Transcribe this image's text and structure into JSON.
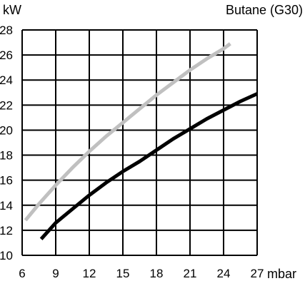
{
  "chart_data": {
    "type": "line",
    "title": "Butane (G30)",
    "xlabel": "mbar",
    "ylabel": "kW",
    "xlim": [
      6,
      27
    ],
    "ylim": [
      10,
      28
    ],
    "x_ticks": [
      6,
      9,
      12,
      15,
      18,
      21,
      24,
      27
    ],
    "y_ticks": [
      10,
      12,
      14,
      16,
      18,
      20,
      22,
      24,
      26,
      28
    ],
    "grid": true,
    "series": [
      {
        "color": "#c0c0c0",
        "points": [
          {
            "x": 6.3,
            "y": 12.8
          },
          {
            "x": 7.5,
            "y": 14.1
          },
          {
            "x": 9.0,
            "y": 15.6
          },
          {
            "x": 10.5,
            "y": 17.0
          },
          {
            "x": 12.0,
            "y": 18.3
          },
          {
            "x": 13.5,
            "y": 19.5
          },
          {
            "x": 15.0,
            "y": 20.6
          },
          {
            "x": 16.5,
            "y": 21.7
          },
          {
            "x": 18.0,
            "y": 22.8
          },
          {
            "x": 19.5,
            "y": 23.8
          },
          {
            "x": 21.0,
            "y": 24.8
          },
          {
            "x": 22.5,
            "y": 25.7
          },
          {
            "x": 24.0,
            "y": 26.5
          },
          {
            "x": 24.6,
            "y": 26.9
          }
        ]
      },
      {
        "color": "#000000",
        "points": [
          {
            "x": 7.7,
            "y": 11.3
          },
          {
            "x": 9.0,
            "y": 12.6
          },
          {
            "x": 10.5,
            "y": 13.7
          },
          {
            "x": 12.0,
            "y": 14.8
          },
          {
            "x": 13.5,
            "y": 15.8
          },
          {
            "x": 15.0,
            "y": 16.7
          },
          {
            "x": 16.5,
            "y": 17.5
          },
          {
            "x": 18.0,
            "y": 18.4
          },
          {
            "x": 19.5,
            "y": 19.3
          },
          {
            "x": 21.0,
            "y": 20.1
          },
          {
            "x": 22.5,
            "y": 20.9
          },
          {
            "x": 24.0,
            "y": 21.6
          },
          {
            "x": 25.5,
            "y": 22.3
          },
          {
            "x": 27.0,
            "y": 22.9
          }
        ]
      }
    ]
  }
}
